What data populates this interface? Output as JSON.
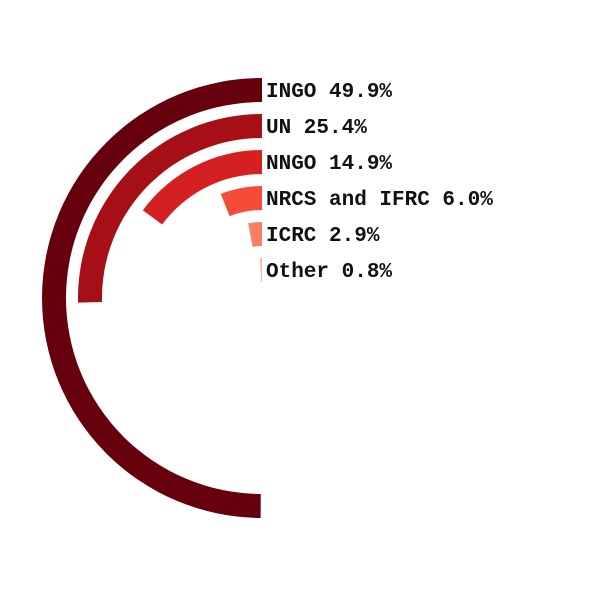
{
  "chart_data": {
    "type": "radial-bar",
    "title": "",
    "unit": "%",
    "max_value": 100,
    "series": [
      {
        "name": "INGO",
        "value": 49.9,
        "label": "INGO 49.9%",
        "color": "#67000d"
      },
      {
        "name": "UN",
        "value": 25.4,
        "label": "UN 25.4%",
        "color": "#a50f15"
      },
      {
        "name": "NNGO",
        "value": 14.9,
        "label": "NNGO 14.9%",
        "color": "#d42020"
      },
      {
        "name": "NRCS and IFRC",
        "value": 6.0,
        "label": "NRCS and IFRC 6.0%",
        "color": "#f44c37"
      },
      {
        "name": "ICRC",
        "value": 2.9,
        "label": "ICRC 2.9%",
        "color": "#fc7f63"
      },
      {
        "name": "Other",
        "value": 0.8,
        "label": "Other 0.8%",
        "color": "#fcb59a"
      }
    ],
    "legend": "inline-labels-right"
  }
}
